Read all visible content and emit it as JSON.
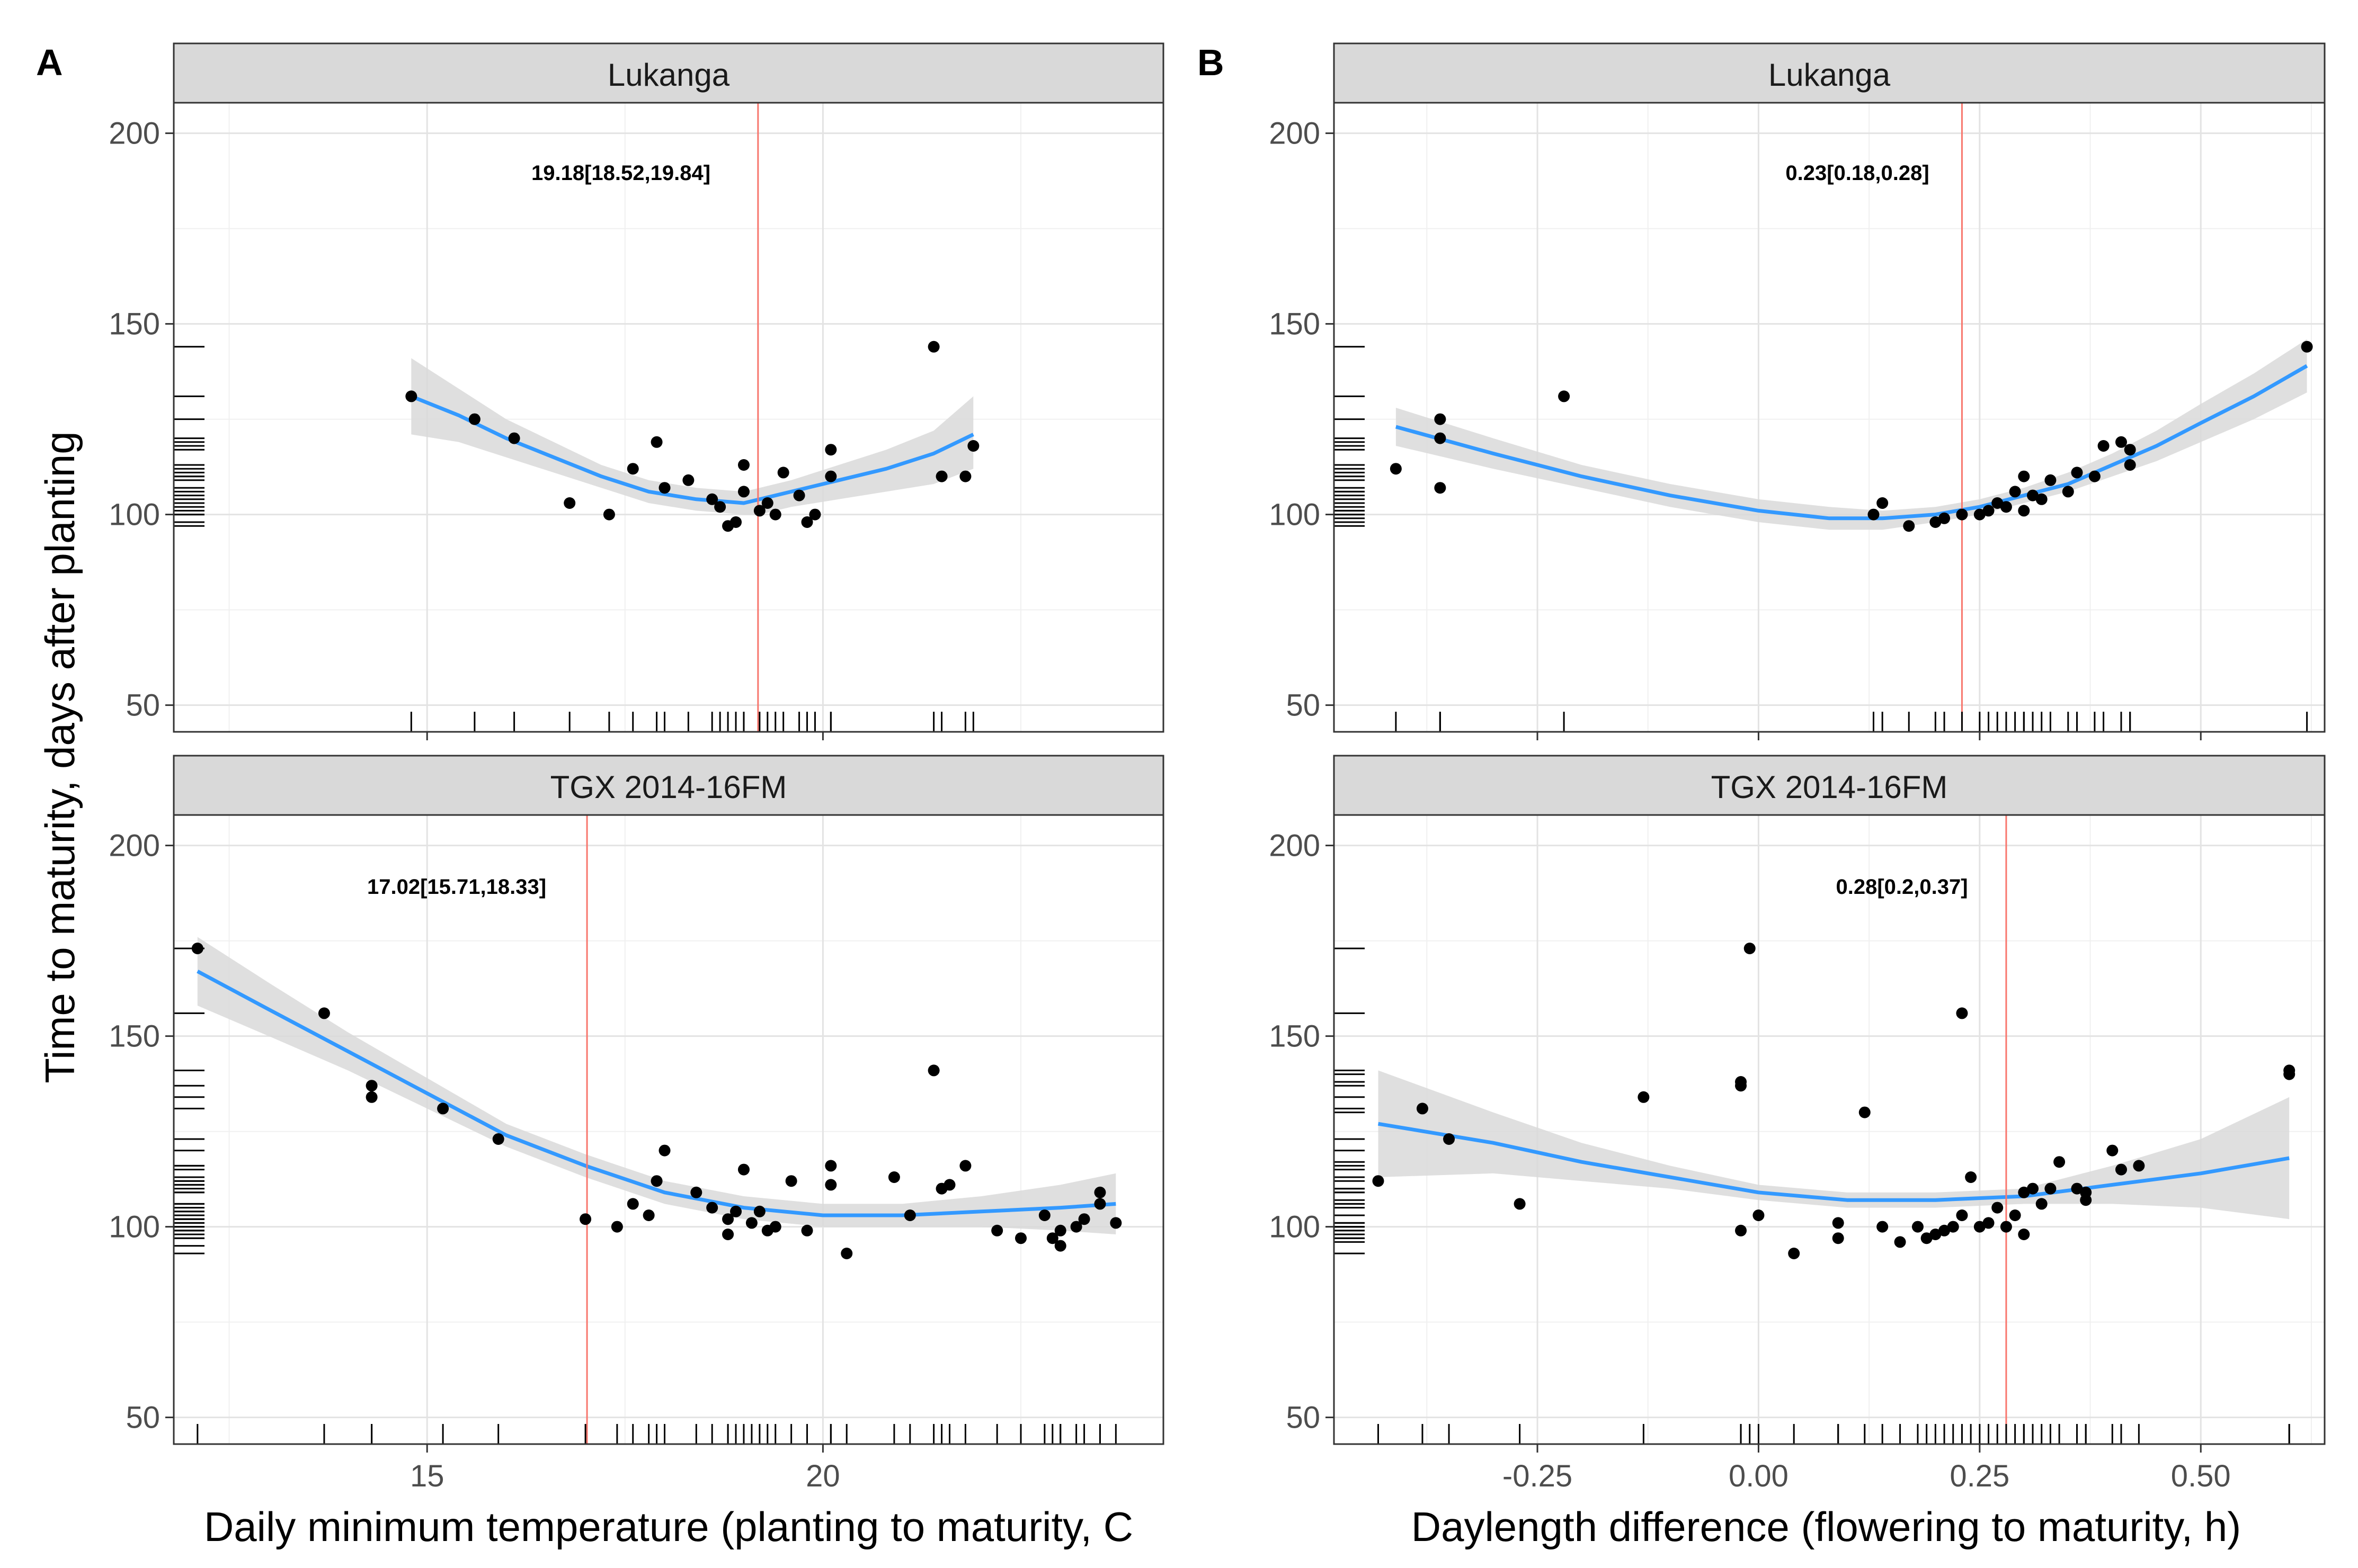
{
  "figure": {
    "y_axis_label": "Time to maturity, days after planting",
    "columns": [
      {
        "tag": "A",
        "xlabel": "Daily minimum temperature (planting to maturity, C"
      },
      {
        "tag": "B",
        "xlabel": "Daylength difference (flowering to maturity, h)"
      }
    ]
  },
  "chart_data": [
    {
      "type": "scatter",
      "column": "A",
      "facet": "Lukanga",
      "xlim": [
        11.8,
        24.3
      ],
      "ylim": [
        43,
        208
      ],
      "xticks": [
        15,
        20
      ],
      "xtick_labels": [
        "",
        ""
      ],
      "yticks": [
        50,
        100,
        150,
        200
      ],
      "ytick_labels": [
        "50",
        "100",
        "150",
        "200"
      ],
      "threshold": 19.18,
      "annotation": "19.18[18.52,19.84]",
      "points": [
        [
          14.8,
          131
        ],
        [
          15.6,
          125
        ],
        [
          16.1,
          120
        ],
        [
          16.8,
          103
        ],
        [
          17.3,
          100
        ],
        [
          17.6,
          112
        ],
        [
          17.9,
          119
        ],
        [
          18.0,
          107
        ],
        [
          18.3,
          109
        ],
        [
          18.6,
          104
        ],
        [
          18.7,
          102
        ],
        [
          18.8,
          97
        ],
        [
          18.9,
          98
        ],
        [
          19.0,
          113
        ],
        [
          19.0,
          106
        ],
        [
          19.2,
          101
        ],
        [
          19.3,
          103
        ],
        [
          19.4,
          100
        ],
        [
          19.5,
          111
        ],
        [
          19.7,
          105
        ],
        [
          19.8,
          98
        ],
        [
          19.9,
          100
        ],
        [
          20.1,
          110
        ],
        [
          20.1,
          117
        ],
        [
          21.4,
          144
        ],
        [
          21.5,
          110
        ],
        [
          21.8,
          110
        ],
        [
          21.9,
          118
        ]
      ],
      "smooth": {
        "color": "#3399ff",
        "ci_color": "#d9d9d9",
        "x": [
          14.8,
          15.4,
          16.0,
          16.6,
          17.2,
          17.8,
          18.4,
          19.0,
          19.2,
          19.6,
          20.2,
          20.8,
          21.4,
          21.9
        ],
        "y": [
          131,
          126,
          120,
          115,
          110,
          106,
          104,
          103,
          104,
          106,
          109,
          112,
          116,
          121
        ],
        "lower": [
          121,
          119,
          115,
          111,
          107,
          103,
          101,
          100,
          100,
          102,
          104,
          106,
          108,
          112
        ],
        "upper": [
          141,
          133,
          125,
          119,
          113,
          109,
          107,
          106,
          107,
          109,
          113,
          117,
          122,
          131
        ]
      }
    },
    {
      "type": "scatter",
      "column": "A",
      "facet": "TGX 2014-16FM",
      "xlim": [
        11.8,
        24.3
      ],
      "ylim": [
        43,
        208
      ],
      "xticks": [
        15,
        20
      ],
      "xtick_labels": [
        "15",
        "20"
      ],
      "yticks": [
        50,
        100,
        150,
        200
      ],
      "ytick_labels": [
        "50",
        "100",
        "150",
        "200"
      ],
      "threshold": 17.02,
      "annotation": "17.02[15.71,18.33]",
      "points": [
        [
          12.1,
          173
        ],
        [
          13.7,
          156
        ],
        [
          14.3,
          134
        ],
        [
          14.3,
          137
        ],
        [
          15.2,
          131
        ],
        [
          15.9,
          123
        ],
        [
          17.0,
          102
        ],
        [
          17.4,
          100
        ],
        [
          17.6,
          106
        ],
        [
          17.8,
          103
        ],
        [
          17.9,
          112
        ],
        [
          18.0,
          120
        ],
        [
          18.4,
          109
        ],
        [
          18.6,
          105
        ],
        [
          18.8,
          98
        ],
        [
          18.8,
          102
        ],
        [
          18.9,
          104
        ],
        [
          19.0,
          115
        ],
        [
          19.1,
          101
        ],
        [
          19.2,
          104
        ],
        [
          19.3,
          99
        ],
        [
          19.4,
          100
        ],
        [
          19.6,
          112
        ],
        [
          19.8,
          99
        ],
        [
          20.1,
          116
        ],
        [
          20.1,
          111
        ],
        [
          20.3,
          93
        ],
        [
          20.9,
          113
        ],
        [
          21.1,
          103
        ],
        [
          21.4,
          141
        ],
        [
          21.5,
          110
        ],
        [
          21.6,
          111
        ],
        [
          21.8,
          116
        ],
        [
          22.2,
          99
        ],
        [
          22.5,
          97
        ],
        [
          22.8,
          103
        ],
        [
          22.9,
          97
        ],
        [
          23.0,
          95
        ],
        [
          23.0,
          99
        ],
        [
          23.2,
          100
        ],
        [
          23.3,
          102
        ],
        [
          23.5,
          106
        ],
        [
          23.5,
          109
        ],
        [
          23.7,
          101
        ]
      ],
      "smooth": {
        "color": "#3399ff",
        "ci_color": "#d9d9d9",
        "x": [
          12.1,
          13.0,
          14.0,
          15.0,
          16.0,
          17.0,
          18.0,
          19.0,
          20.0,
          21.0,
          22.0,
          23.0,
          23.7
        ],
        "y": [
          167,
          157,
          146,
          135,
          124,
          116,
          109,
          105,
          103,
          103,
          104,
          105,
          106
        ],
        "lower": [
          158,
          150,
          141,
          131,
          121,
          113,
          106,
          102,
          100,
          100,
          100,
          99,
          98
        ],
        "upper": [
          176,
          164,
          151,
          139,
          127,
          119,
          112,
          108,
          106,
          106,
          108,
          111,
          114
        ]
      }
    },
    {
      "type": "scatter",
      "column": "B",
      "facet": "Lukanga",
      "xlim": [
        -0.48,
        0.64
      ],
      "ylim": [
        43,
        208
      ],
      "xticks": [
        -0.25,
        0.0,
        0.25,
        0.5
      ],
      "xtick_labels": [
        "",
        "",
        "",
        ""
      ],
      "yticks": [
        50,
        100,
        150,
        200
      ],
      "ytick_labels": [
        "50",
        "100",
        "150",
        "200"
      ],
      "threshold": 0.23,
      "annotation": "0.23[0.18,0.28]",
      "points": [
        [
          -0.41,
          112
        ],
        [
          -0.36,
          120
        ],
        [
          -0.36,
          107
        ],
        [
          -0.36,
          125
        ],
        [
          -0.22,
          131
        ],
        [
          0.13,
          100
        ],
        [
          0.14,
          103
        ],
        [
          0.17,
          97
        ],
        [
          0.2,
          98
        ],
        [
          0.21,
          99
        ],
        [
          0.23,
          100
        ],
        [
          0.25,
          100
        ],
        [
          0.26,
          101
        ],
        [
          0.27,
          103
        ],
        [
          0.28,
          102
        ],
        [
          0.29,
          106
        ],
        [
          0.3,
          110
        ],
        [
          0.3,
          101
        ],
        [
          0.31,
          105
        ],
        [
          0.32,
          104
        ],
        [
          0.33,
          109
        ],
        [
          0.35,
          106
        ],
        [
          0.36,
          111
        ],
        [
          0.38,
          110
        ],
        [
          0.39,
          118
        ],
        [
          0.41,
          119
        ],
        [
          0.42,
          113
        ],
        [
          0.42,
          117
        ],
        [
          0.62,
          144
        ]
      ],
      "smooth": {
        "color": "#3399ff",
        "ci_color": "#d9d9d9",
        "x": [
          -0.41,
          -0.3,
          -0.2,
          -0.1,
          0.0,
          0.08,
          0.14,
          0.2,
          0.25,
          0.3,
          0.35,
          0.4,
          0.45,
          0.5,
          0.56,
          0.62
        ],
        "y": [
          123,
          116,
          110,
          105,
          101,
          99,
          99,
          100,
          102,
          105,
          108,
          113,
          118,
          124,
          131,
          139
        ],
        "lower": [
          118,
          112,
          107,
          102,
          98,
          96,
          96,
          98,
          100,
          103,
          106,
          110,
          114,
          119,
          125,
          132
        ],
        "upper": [
          128,
          120,
          113,
          108,
          104,
          102,
          101,
          102,
          104,
          107,
          111,
          116,
          122,
          129,
          137,
          146
        ]
      }
    },
    {
      "type": "scatter",
      "column": "B",
      "facet": "TGX 2014-16FM",
      "xlim": [
        -0.48,
        0.64
      ],
      "ylim": [
        43,
        208
      ],
      "xticks": [
        -0.25,
        0.0,
        0.25,
        0.5
      ],
      "xtick_labels": [
        "-0.25",
        "0.00",
        "0.25",
        "0.50"
      ],
      "yticks": [
        50,
        100,
        150,
        200
      ],
      "ytick_labels": [
        "50",
        "100",
        "150",
        "200"
      ],
      "threshold": 0.28,
      "annotation": "0.28[0.2,0.37]",
      "points": [
        [
          -0.43,
          112
        ],
        [
          -0.38,
          131
        ],
        [
          -0.35,
          123
        ],
        [
          -0.27,
          106
        ],
        [
          -0.13,
          134
        ],
        [
          -0.02,
          138
        ],
        [
          -0.02,
          137
        ],
        [
          -0.01,
          173
        ],
        [
          -0.02,
          99
        ],
        [
          0.0,
          103
        ],
        [
          0.04,
          93
        ],
        [
          0.09,
          101
        ],
        [
          0.09,
          97
        ],
        [
          0.12,
          130
        ],
        [
          0.14,
          100
        ],
        [
          0.16,
          96
        ],
        [
          0.18,
          100
        ],
        [
          0.19,
          97
        ],
        [
          0.2,
          98
        ],
        [
          0.21,
          99
        ],
        [
          0.22,
          100
        ],
        [
          0.23,
          156
        ],
        [
          0.23,
          103
        ],
        [
          0.24,
          113
        ],
        [
          0.25,
          100
        ],
        [
          0.26,
          101
        ],
        [
          0.27,
          105
        ],
        [
          0.28,
          100
        ],
        [
          0.29,
          103
        ],
        [
          0.3,
          109
        ],
        [
          0.3,
          98
        ],
        [
          0.31,
          110
        ],
        [
          0.32,
          106
        ],
        [
          0.33,
          110
        ],
        [
          0.34,
          117
        ],
        [
          0.36,
          110
        ],
        [
          0.37,
          107
        ],
        [
          0.37,
          109
        ],
        [
          0.4,
          120
        ],
        [
          0.41,
          115
        ],
        [
          0.43,
          116
        ],
        [
          0.6,
          141
        ],
        [
          0.6,
          140
        ]
      ],
      "smooth": {
        "color": "#3399ff",
        "ci_color": "#d9d9d9",
        "x": [
          -0.43,
          -0.3,
          -0.2,
          -0.1,
          0.0,
          0.1,
          0.2,
          0.3,
          0.4,
          0.5,
          0.6
        ],
        "y": [
          127,
          122,
          117,
          113,
          109,
          107,
          107,
          108,
          111,
          114,
          118
        ],
        "lower": [
          113,
          114,
          112,
          110,
          107,
          105,
          105,
          106,
          106,
          105,
          102
        ],
        "upper": [
          141,
          130,
          122,
          116,
          111,
          109,
          109,
          110,
          116,
          123,
          134
        ]
      }
    }
  ]
}
